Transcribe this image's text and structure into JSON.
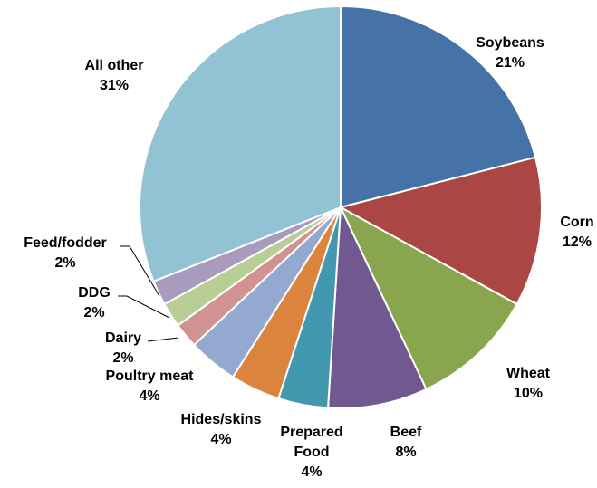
{
  "chart_data": {
    "type": "pie",
    "title": "",
    "legend": "none",
    "slices": [
      {
        "label": "Soybeans",
        "value": 21,
        "display": "21%",
        "color": "#4572A7"
      },
      {
        "label": "Corn",
        "value": 12,
        "display": "12%",
        "color": "#AA4643"
      },
      {
        "label": "Wheat",
        "value": 10,
        "display": "10%",
        "color": "#89A54E"
      },
      {
        "label": "Beef",
        "value": 8,
        "display": "8%",
        "color": "#71588F"
      },
      {
        "label": "Prepared Food",
        "value": 4,
        "display": "4%",
        "color": "#4198AF"
      },
      {
        "label": "Hides/skins",
        "value": 4,
        "display": "4%",
        "color": "#DB843D"
      },
      {
        "label": "Poultry meat",
        "value": 4,
        "display": "4%",
        "color": "#93A9CF"
      },
      {
        "label": "Dairy",
        "value": 2,
        "display": "2%",
        "color": "#D19392"
      },
      {
        "label": "DDG",
        "value": 2,
        "display": "2%",
        "color": "#B9CD96"
      },
      {
        "label": "Feed/fodder",
        "value": 2,
        "display": "2%",
        "color": "#A99BBD"
      },
      {
        "label": "All other",
        "value": 31,
        "display": "31%",
        "color": "#92C3D4"
      }
    ]
  }
}
